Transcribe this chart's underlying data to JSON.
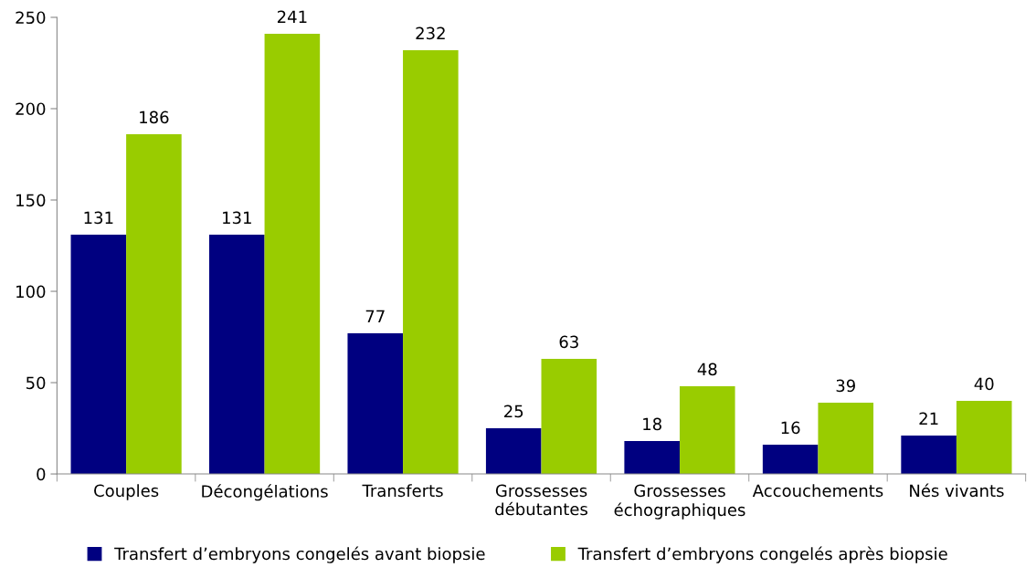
{
  "chart_data": {
    "type": "bar",
    "categories": [
      "Couples",
      "Décongélations",
      "Transferts",
      "Grossesses\ndébutantes",
      "Grossesses\néchographiques",
      "Accouchements",
      "Nés vivants"
    ],
    "series": [
      {
        "name": "Transfert d’embryons congelés avant biopsie",
        "color": "#000080",
        "values": [
          131,
          131,
          77,
          25,
          18,
          16,
          21
        ]
      },
      {
        "name": "Transfert d’embryons congelés après biopsie",
        "color": "#99cc00",
        "values": [
          186,
          241,
          232,
          63,
          48,
          39,
          40
        ]
      }
    ],
    "ylim": [
      0,
      250
    ],
    "yticks": [
      0,
      50,
      100,
      150,
      200,
      250
    ],
    "grid": false,
    "legend": "bottom",
    "data_labels": true
  }
}
